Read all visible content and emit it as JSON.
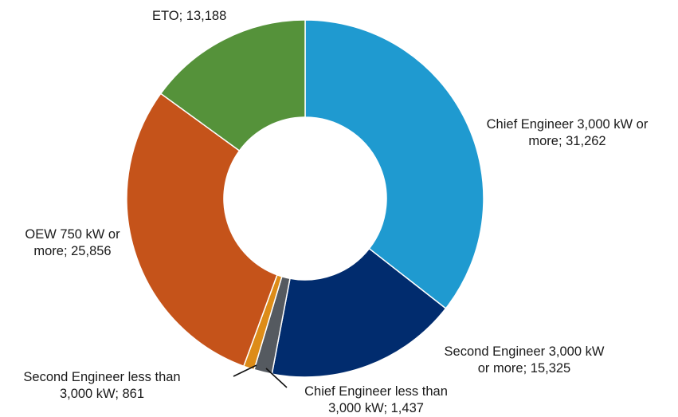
{
  "chart_data": {
    "type": "pie",
    "variant": "donut",
    "legend": "none",
    "slices": [
      {
        "category": "Chief Engineer 3,000 kW or more",
        "value": 31262,
        "color": "#1f9ad0",
        "label_lines": [
          "Chief Engineer 3,000 kW or",
          "more; 31,262"
        ]
      },
      {
        "category": "Second Engineer 3,000 kW or more",
        "value": 15325,
        "color": "#012c6e",
        "label_lines": [
          "Second Engineer 3,000 kW",
          "or more;  15,325"
        ]
      },
      {
        "category": "Chief Engineer less than 3,000 kW",
        "value": 1437,
        "color": "#555a60",
        "label_lines": [
          "Chief Engineer less than",
          "3,000 kW; 1,437"
        ]
      },
      {
        "category": "Second Engineer less than 3,000 kW",
        "value": 861,
        "color": "#dd8c18",
        "label_lines": [
          "Second Engineer less than",
          "3,000 kW; 861"
        ]
      },
      {
        "category": "OEW 750 kW or more",
        "value": 25856,
        "color": "#c5531a",
        "label_lines": [
          "OEW 750 kW or",
          "more; 25,856"
        ]
      },
      {
        "category": "ETO",
        "value": 13188,
        "color": "#55923a",
        "label_lines": [
          "ETO;  13,188"
        ]
      }
    ]
  }
}
